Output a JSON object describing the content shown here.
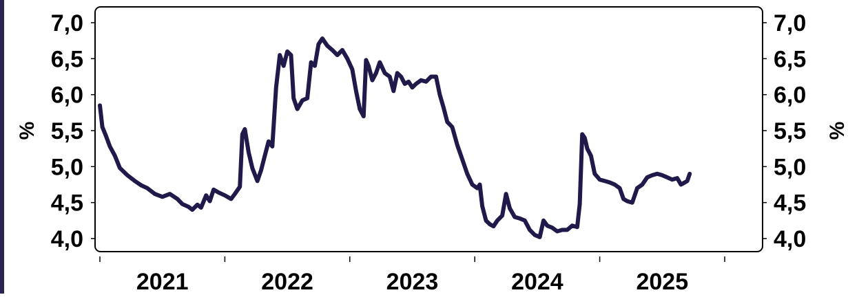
{
  "colors": {
    "line": "#1f1a4a",
    "left_bar": "#2a2450",
    "frame": "#000000"
  },
  "chart_data": {
    "type": "line",
    "title": "",
    "xlabel": "",
    "ylabel": "%",
    "y2label": "%",
    "ylim": [
      3.9,
      7.2
    ],
    "yticks": [
      "7,0",
      "6,5",
      "6,0",
      "5,5",
      "5,0",
      "4,5",
      "4,0"
    ],
    "ytick_values": [
      7.0,
      6.5,
      6.0,
      5.5,
      5.0,
      4.5,
      4.0
    ],
    "xlim": [
      2021.0,
      2026.3
    ],
    "xticks": [
      {
        "label": "2021",
        "value": 2021.5
      },
      {
        "label": "2022",
        "value": 2022.5
      },
      {
        "label": "2023",
        "value": 2023.5
      },
      {
        "label": "2024",
        "value": 2024.5
      },
      {
        "label": "2025",
        "value": 2025.5
      }
    ],
    "x_boundaries": [
      2021.0,
      2022.0,
      2023.0,
      2024.0,
      2025.0,
      2026.0
    ],
    "grid": false,
    "legend": "none",
    "series": [
      {
        "values": [
          [
            2021.0,
            5.85
          ],
          [
            2021.02,
            5.55
          ],
          [
            2021.05,
            5.42
          ],
          [
            2021.08,
            5.28
          ],
          [
            2021.12,
            5.15
          ],
          [
            2021.16,
            4.98
          ],
          [
            2021.22,
            4.88
          ],
          [
            2021.28,
            4.8
          ],
          [
            2021.33,
            4.74
          ],
          [
            2021.38,
            4.7
          ],
          [
            2021.44,
            4.62
          ],
          [
            2021.5,
            4.58
          ],
          [
            2021.56,
            4.62
          ],
          [
            2021.62,
            4.55
          ],
          [
            2021.66,
            4.48
          ],
          [
            2021.71,
            4.44
          ],
          [
            2021.74,
            4.4
          ],
          [
            2021.78,
            4.47
          ],
          [
            2021.81,
            4.43
          ],
          [
            2021.85,
            4.6
          ],
          [
            2021.88,
            4.52
          ],
          [
            2021.91,
            4.68
          ],
          [
            2021.95,
            4.64
          ],
          [
            2022.0,
            4.6
          ],
          [
            2022.05,
            4.55
          ],
          [
            2022.08,
            4.62
          ],
          [
            2022.12,
            4.72
          ],
          [
            2022.14,
            5.45
          ],
          [
            2022.16,
            5.52
          ],
          [
            2022.19,
            5.2
          ],
          [
            2022.22,
            4.98
          ],
          [
            2022.26,
            4.8
          ],
          [
            2022.29,
            4.95
          ],
          [
            2022.32,
            5.15
          ],
          [
            2022.35,
            5.35
          ],
          [
            2022.38,
            5.28
          ],
          [
            2022.41,
            6.1
          ],
          [
            2022.44,
            6.55
          ],
          [
            2022.47,
            6.4
          ],
          [
            2022.5,
            6.6
          ],
          [
            2022.53,
            6.55
          ],
          [
            2022.55,
            5.95
          ],
          [
            2022.58,
            5.8
          ],
          [
            2022.62,
            5.92
          ],
          [
            2022.66,
            5.95
          ],
          [
            2022.69,
            6.45
          ],
          [
            2022.72,
            6.4
          ],
          [
            2022.75,
            6.7
          ],
          [
            2022.78,
            6.78
          ],
          [
            2022.82,
            6.68
          ],
          [
            2022.86,
            6.62
          ],
          [
            2022.9,
            6.55
          ],
          [
            2022.94,
            6.62
          ],
          [
            2022.98,
            6.5
          ],
          [
            2023.02,
            6.35
          ],
          [
            2023.05,
            6.05
          ],
          [
            2023.08,
            5.8
          ],
          [
            2023.11,
            5.7
          ],
          [
            2023.13,
            6.48
          ],
          [
            2023.15,
            6.4
          ],
          [
            2023.18,
            6.2
          ],
          [
            2023.21,
            6.3
          ],
          [
            2023.24,
            6.45
          ],
          [
            2023.28,
            6.3
          ],
          [
            2023.32,
            6.25
          ],
          [
            2023.35,
            6.05
          ],
          [
            2023.38,
            6.3
          ],
          [
            2023.41,
            6.25
          ],
          [
            2023.44,
            6.15
          ],
          [
            2023.47,
            6.18
          ],
          [
            2023.5,
            6.1
          ],
          [
            2023.53,
            6.15
          ],
          [
            2023.57,
            6.2
          ],
          [
            2023.61,
            6.18
          ],
          [
            2023.65,
            6.25
          ],
          [
            2023.69,
            6.25
          ],
          [
            2023.72,
            6.0
          ],
          [
            2023.75,
            5.82
          ],
          [
            2023.78,
            5.62
          ],
          [
            2023.82,
            5.55
          ],
          [
            2023.86,
            5.3
          ],
          [
            2023.9,
            5.1
          ],
          [
            2023.94,
            4.9
          ],
          [
            2023.98,
            4.75
          ],
          [
            2024.02,
            4.7
          ],
          [
            2024.04,
            4.75
          ],
          [
            2024.06,
            4.45
          ],
          [
            2024.09,
            4.25
          ],
          [
            2024.12,
            4.2
          ],
          [
            2024.15,
            4.17
          ],
          [
            2024.18,
            4.25
          ],
          [
            2024.22,
            4.32
          ],
          [
            2024.25,
            4.62
          ],
          [
            2024.28,
            4.42
          ],
          [
            2024.32,
            4.3
          ],
          [
            2024.36,
            4.28
          ],
          [
            2024.4,
            4.25
          ],
          [
            2024.44,
            4.12
          ],
          [
            2024.48,
            4.05
          ],
          [
            2024.52,
            4.02
          ],
          [
            2024.55,
            4.25
          ],
          [
            2024.58,
            4.18
          ],
          [
            2024.62,
            4.15
          ],
          [
            2024.66,
            4.1
          ],
          [
            2024.7,
            4.12
          ],
          [
            2024.74,
            4.12
          ],
          [
            2024.78,
            4.18
          ],
          [
            2024.82,
            4.16
          ],
          [
            2024.84,
            4.48
          ],
          [
            2024.86,
            5.45
          ],
          [
            2024.88,
            5.4
          ],
          [
            2024.9,
            5.25
          ],
          [
            2024.93,
            5.15
          ],
          [
            2024.96,
            4.9
          ],
          [
            2025.0,
            4.82
          ],
          [
            2025.04,
            4.8
          ],
          [
            2025.08,
            4.78
          ],
          [
            2025.12,
            4.75
          ],
          [
            2025.16,
            4.7
          ],
          [
            2025.19,
            4.55
          ],
          [
            2025.22,
            4.52
          ],
          [
            2025.26,
            4.5
          ],
          [
            2025.3,
            4.7
          ],
          [
            2025.34,
            4.75
          ],
          [
            2025.38,
            4.85
          ],
          [
            2025.42,
            4.88
          ],
          [
            2025.46,
            4.9
          ],
          [
            2025.5,
            4.88
          ],
          [
            2025.54,
            4.85
          ],
          [
            2025.58,
            4.82
          ],
          [
            2025.62,
            4.84
          ],
          [
            2025.65,
            4.75
          ],
          [
            2025.68,
            4.78
          ],
          [
            2025.7,
            4.8
          ],
          [
            2025.72,
            4.9
          ]
        ]
      }
    ]
  }
}
